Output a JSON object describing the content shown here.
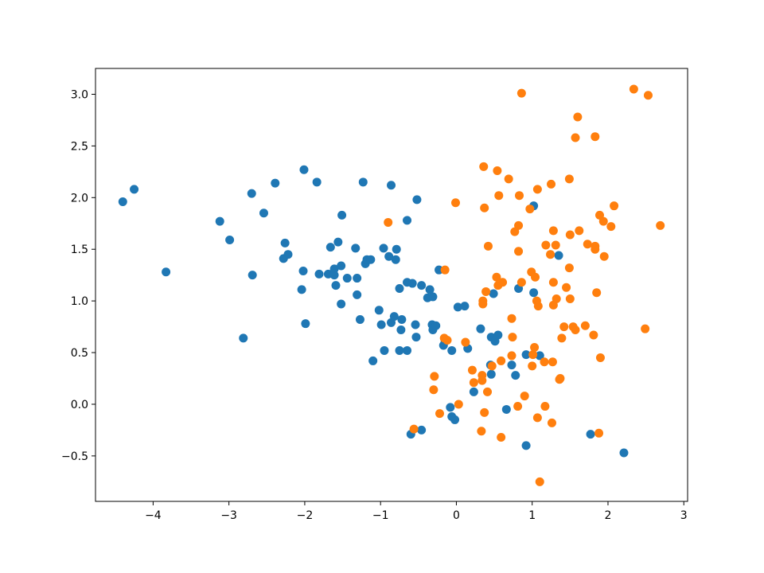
{
  "chart_data": {
    "type": "scatter",
    "xlim": [
      -4.76,
      3.05
    ],
    "ylim": [
      -0.94,
      3.25
    ],
    "xticks": [
      {
        "value": -4,
        "label": "−4"
      },
      {
        "value": -3,
        "label": "−3"
      },
      {
        "value": -2,
        "label": "−2"
      },
      {
        "value": -1,
        "label": "−1"
      },
      0,
      1,
      2,
      3
    ],
    "yticks": [
      {
        "value": -0.5,
        "label": "−0.5"
      },
      {
        "value": 0,
        "label": "0.0"
      },
      0.5,
      {
        "value": 1,
        "label": "1.0"
      },
      1.5,
      {
        "value": 2,
        "label": "2.0"
      },
      2.5,
      {
        "value": 3,
        "label": "3.0"
      }
    ],
    "series": [
      {
        "color": "#1f77b4",
        "x": [
          -4.4,
          -4.25,
          -3.83,
          -3.12,
          -2.99,
          -2.81,
          -2.7,
          -2.69,
          -2.54,
          -2.39,
          -2.26,
          -2.28,
          -2.22,
          -2.01,
          -2.02,
          -2.04,
          -1.99,
          -1.84,
          -1.81,
          -1.69,
          -1.66,
          -1.61,
          -1.56,
          -1.59,
          -1.61,
          -1.52,
          -1.51,
          -1.52,
          -1.44,
          -1.33,
          -1.31,
          -1.31,
          -1.27,
          -1.23,
          -1.2,
          -1.18,
          -1.13,
          -1.1,
          -1.02,
          -0.99,
          -0.96,
          -0.95,
          -0.89,
          -0.86,
          -0.86,
          -0.82,
          -0.8,
          -0.79,
          -0.75,
          -0.75,
          -0.72,
          -0.73,
          -0.65,
          -0.65,
          -0.65,
          -0.58,
          -0.54,
          -0.52,
          -0.53,
          -0.6,
          -0.46,
          -0.46,
          -0.35,
          -0.38,
          -0.31,
          -0.32,
          -0.31,
          -0.27,
          -0.23,
          -0.17,
          -0.15,
          -0.08,
          -0.06,
          -0.06,
          -0.02,
          0.02,
          0.11,
          0.15,
          0.23,
          0.32,
          0.45,
          0.46,
          0.46,
          0.49,
          0.51,
          0.55,
          0.66,
          0.73,
          0.78,
          0.82,
          0.92,
          0.92,
          1.02,
          1.02,
          1.1,
          1.35,
          1.77,
          2.21
        ],
        "values": [
          1.96,
          2.08,
          1.28,
          1.77,
          1.59,
          0.64,
          2.04,
          1.25,
          1.85,
          2.14,
          1.56,
          1.41,
          1.45,
          2.27,
          1.29,
          1.11,
          0.78,
          2.15,
          1.26,
          1.26,
          1.52,
          1.31,
          1.57,
          1.15,
          1.25,
          1.34,
          1.83,
          0.97,
          1.22,
          1.51,
          1.22,
          1.06,
          0.82,
          2.15,
          1.36,
          1.4,
          1.4,
          0.42,
          0.91,
          0.77,
          1.51,
          0.52,
          1.43,
          2.12,
          0.79,
          0.85,
          1.4,
          1.5,
          0.52,
          1.12,
          0.82,
          0.72,
          1.78,
          1.18,
          0.52,
          1.17,
          0.77,
          1.98,
          0.65,
          -0.29,
          -0.25,
          1.15,
          1.11,
          1.03,
          1.04,
          0.77,
          0.72,
          0.76,
          1.3,
          0.57,
          0.61,
          -0.03,
          0.52,
          -0.12,
          -0.15,
          0.94,
          0.95,
          0.54,
          0.12,
          0.73,
          0.38,
          0.29,
          0.65,
          1.07,
          0.61,
          0.67,
          -0.05,
          0.38,
          0.28,
          1.12,
          -0.4,
          0.48,
          1.08,
          1.92,
          0.47,
          1.44,
          -0.29,
          -0.47
        ]
      },
      {
        "color": "#ff7f0e",
        "x": [
          -0.9,
          -0.56,
          -0.29,
          -0.3,
          -0.22,
          -0.15,
          -0.16,
          -0.12,
          -0.01,
          0.03,
          0.12,
          0.21,
          0.23,
          0.33,
          0.34,
          0.34,
          0.35,
          0.35,
          0.37,
          0.36,
          0.37,
          0.39,
          0.41,
          0.42,
          0.47,
          0.54,
          0.53,
          0.56,
          0.55,
          0.59,
          0.59,
          0.61,
          0.69,
          0.73,
          0.73,
          0.74,
          0.77,
          0.82,
          0.82,
          0.83,
          0.81,
          0.86,
          0.86,
          0.9,
          0.97,
          0.99,
          1.0,
          1.01,
          1.03,
          1.04,
          1.06,
          1.07,
          1.08,
          1.07,
          1.1,
          1.16,
          1.17,
          1.18,
          1.24,
          1.25,
          1.26,
          1.28,
          1.28,
          1.28,
          1.27,
          1.31,
          1.32,
          1.36,
          1.37,
          1.39,
          1.42,
          1.45,
          1.49,
          1.49,
          1.5,
          1.5,
          1.54,
          1.57,
          1.57,
          1.6,
          1.62,
          1.7,
          1.73,
          1.81,
          1.83,
          1.83,
          1.83,
          1.85,
          1.88,
          1.89,
          1.9,
          1.94,
          1.95,
          2.04,
          2.08,
          2.34,
          2.49,
          2.53,
          2.69
        ],
        "values": [
          1.76,
          -0.24,
          0.27,
          0.14,
          -0.09,
          1.3,
          0.64,
          0.62,
          1.95,
          0.0,
          0.6,
          0.33,
          0.21,
          -0.26,
          0.28,
          0.23,
          1.0,
          0.97,
          -0.08,
          2.3,
          1.9,
          1.09,
          0.12,
          1.53,
          0.37,
          2.26,
          1.23,
          2.02,
          1.15,
          -0.32,
          0.42,
          1.18,
          2.18,
          0.83,
          0.47,
          0.65,
          1.67,
          1.73,
          1.48,
          2.02,
          -0.02,
          3.01,
          1.18,
          0.08,
          1.89,
          1.28,
          0.37,
          0.48,
          0.55,
          1.23,
          1.0,
          2.08,
          0.95,
          -0.13,
          -0.75,
          0.41,
          -0.02,
          1.54,
          1.45,
          2.13,
          -0.18,
          1.68,
          1.18,
          0.96,
          0.41,
          1.54,
          1.02,
          0.24,
          0.25,
          0.64,
          0.75,
          1.13,
          2.18,
          1.32,
          1.64,
          1.02,
          0.75,
          0.72,
          2.58,
          2.78,
          1.68,
          0.76,
          1.55,
          0.67,
          1.53,
          1.5,
          2.59,
          1.08,
          -0.28,
          1.83,
          0.45,
          1.77,
          1.43,
          1.72,
          1.92,
          3.05,
          0.73,
          2.99,
          1.73
        ]
      }
    ]
  }
}
